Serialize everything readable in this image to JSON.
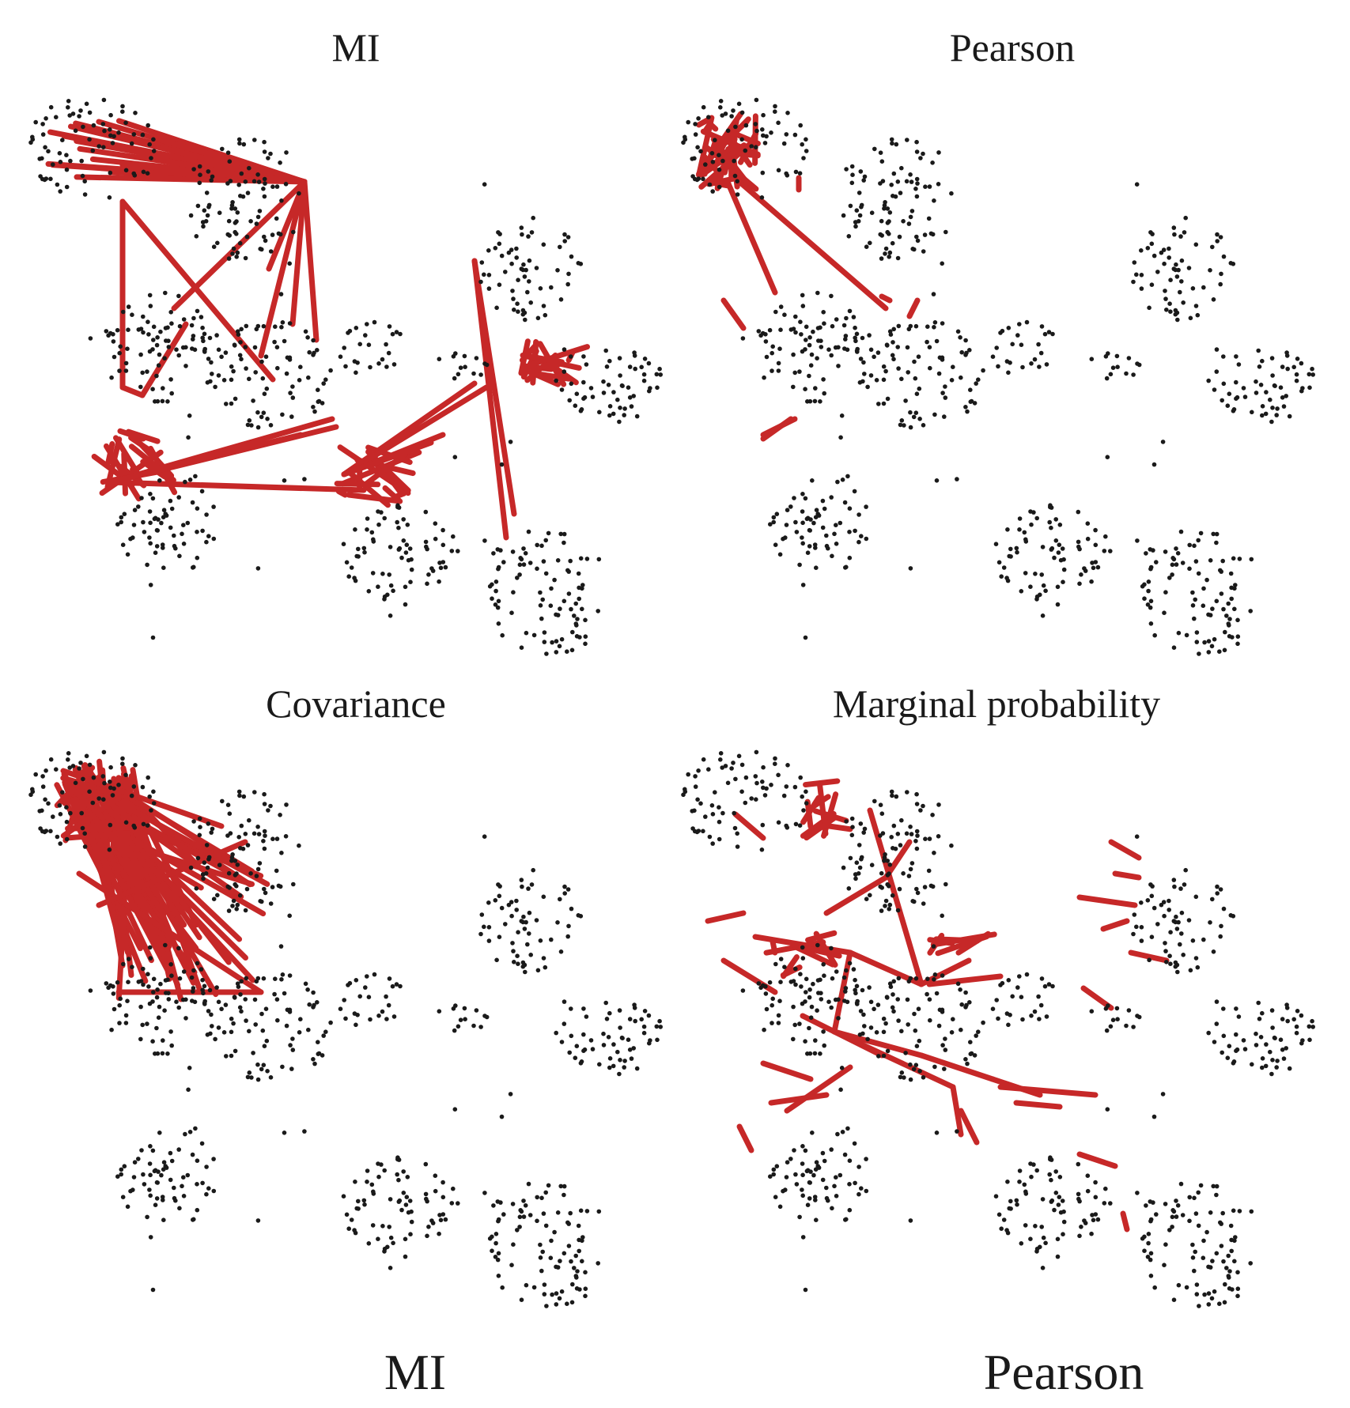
{
  "panels": [
    {
      "title": "MI",
      "edge_pattern": "mi_star"
    },
    {
      "title": "Pearson",
      "edge_pattern": "pearson_sparse"
    },
    {
      "title": "Covariance",
      "edge_pattern": "covariance_dense"
    },
    {
      "title": "Marginal probability",
      "edge_pattern": "marginal_spread"
    }
  ],
  "bottom_labels": [
    "MI",
    "Pearson"
  ],
  "colors": {
    "edge": "#c62828",
    "node": "#1a1a1a",
    "background": "#ffffff"
  }
}
